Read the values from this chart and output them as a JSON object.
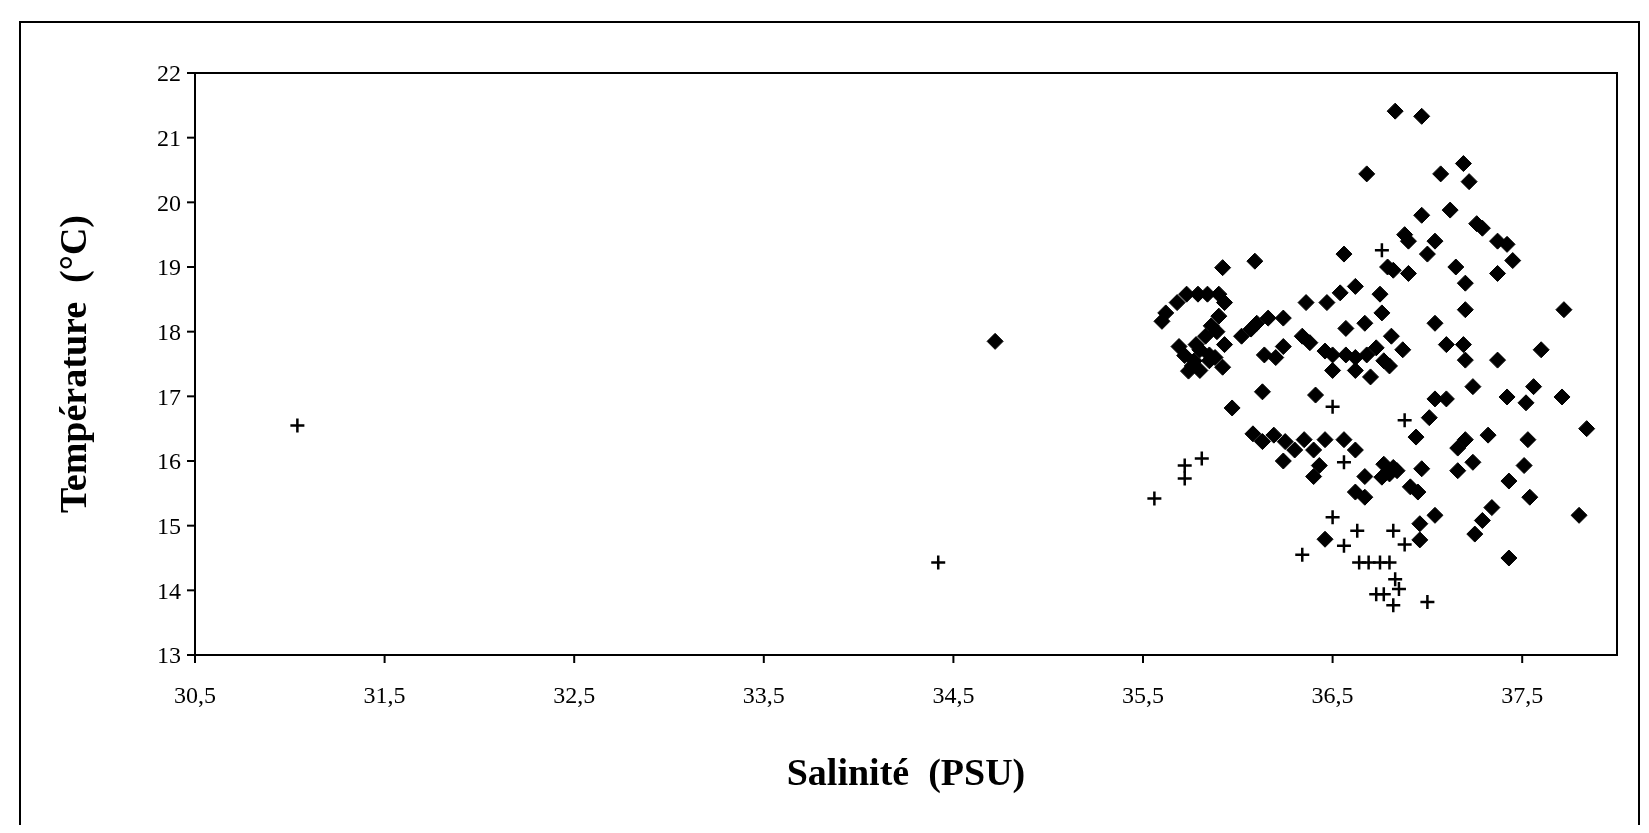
{
  "chart_data": {
    "type": "scatter",
    "xlabel": "Salinité  (PSU)",
    "ylabel": "Température  (°C)",
    "xlim": [
      30.5,
      38
    ],
    "ylim": [
      13,
      22
    ],
    "xticks": [
      {
        "value": 30.5,
        "label": "30,5"
      },
      {
        "value": 31.5,
        "label": "31,5"
      },
      {
        "value": 32.5,
        "label": "32,5"
      },
      {
        "value": 33.5,
        "label": "33,5"
      },
      {
        "value": 34.5,
        "label": "34,5"
      },
      {
        "value": 35.5,
        "label": "35,5"
      },
      {
        "value": 36.5,
        "label": "36,5"
      },
      {
        "value": 37.5,
        "label": "37,5"
      }
    ],
    "yticks": [
      13,
      14,
      15,
      16,
      17,
      18,
      19,
      20,
      21,
      22
    ],
    "series": [
      {
        "color": "#000000",
        "marker": "diamond",
        "x": [
          34.72,
          36.83,
          36.97,
          36.68,
          37.07,
          37.19,
          37.22,
          37.12,
          37.26,
          37.29,
          37.37,
          37.42,
          37.45,
          37.37,
          36.97,
          36.88,
          36.9,
          37.0,
          37.04,
          36.79,
          36.82,
          36.9,
          37.15,
          37.2,
          36.09,
          35.92,
          36.56,
          36.36,
          36.47,
          36.54,
          36.62,
          36.75,
          37.2,
          37.04,
          37.1,
          37.19,
          37.2,
          37.37,
          37.6,
          37.72,
          37.71,
          37.56,
          37.52,
          37.42,
          37.24,
          37.84,
          37.53,
          37.51,
          37.54,
          37.43,
          37.34,
          37.29,
          37.25,
          37.43,
          37.8,
          37.24,
          37.16,
          37.2,
          37.16,
          37.32,
          37.04,
          37.1,
          37.01,
          36.94,
          36.97,
          36.91,
          36.95,
          37.04,
          36.96,
          36.96,
          36.56,
          36.62,
          36.67,
          36.62,
          36.67,
          36.77,
          36.8,
          36.84,
          36.76,
          36.82,
          36.4,
          36.46,
          36.35,
          36.24,
          36.3,
          36.19,
          36.25,
          36.4,
          36.43,
          36.46,
          35.97,
          36.08,
          36.13,
          36.13,
          36.41,
          36.46,
          36.5,
          36.38,
          36.34,
          36.24,
          36.14,
          36.2,
          36.02,
          36.07,
          36.1,
          36.16,
          36.24,
          36.57,
          36.67,
          36.57,
          36.62,
          36.68,
          36.73,
          36.77,
          36.5,
          36.62,
          36.7,
          36.8,
          36.87,
          36.81,
          36.76,
          35.62,
          35.68,
          35.73,
          35.79,
          35.84,
          35.9,
          35.6,
          35.93,
          35.9,
          35.86,
          35.83,
          35.8,
          35.77,
          35.74,
          35.72,
          35.78,
          35.85,
          35.85,
          35.8,
          35.76,
          35.69,
          35.89,
          35.93,
          35.92,
          35.88
        ],
        "values": [
          17.85,
          21.41,
          21.33,
          20.44,
          20.44,
          20.6,
          20.32,
          19.88,
          19.67,
          19.6,
          19.4,
          19.35,
          19.1,
          18.9,
          19.8,
          19.5,
          19.4,
          19.2,
          19.4,
          19.0,
          18.95,
          18.9,
          19.0,
          18.75,
          19.09,
          18.99,
          19.2,
          18.45,
          18.45,
          18.6,
          18.7,
          18.58,
          18.34,
          18.13,
          17.8,
          17.8,
          17.56,
          17.56,
          17.72,
          18.34,
          16.99,
          17.15,
          16.9,
          16.99,
          17.15,
          16.5,
          16.33,
          15.93,
          15.44,
          15.69,
          15.28,
          15.08,
          14.87,
          14.5,
          15.16,
          15.98,
          15.85,
          16.33,
          16.2,
          16.4,
          16.96,
          16.96,
          16.67,
          16.37,
          15.88,
          15.6,
          15.52,
          15.16,
          15.03,
          14.78,
          16.33,
          16.17,
          15.76,
          15.52,
          15.44,
          15.95,
          15.8,
          15.85,
          15.75,
          15.9,
          16.17,
          16.33,
          16.33,
          16.0,
          16.17,
          16.4,
          16.3,
          15.76,
          15.93,
          14.79,
          16.82,
          16.42,
          16.3,
          17.07,
          17.02,
          17.7,
          17.64,
          17.83,
          17.93,
          17.77,
          17.64,
          17.6,
          17.93,
          18.04,
          18.13,
          18.21,
          18.21,
          18.05,
          18.13,
          17.64,
          17.6,
          17.64,
          17.75,
          17.55,
          17.4,
          17.4,
          17.3,
          17.47,
          17.72,
          17.93,
          18.29,
          18.29,
          18.45,
          18.58,
          18.58,
          18.58,
          18.58,
          18.16,
          18.45,
          18.24,
          18.09,
          17.93,
          17.72,
          17.55,
          17.39,
          17.63,
          17.8,
          17.64,
          17.55,
          17.4,
          17.47,
          17.77,
          18.0,
          17.8,
          17.45,
          17.6
        ]
      },
      {
        "color": "#000000",
        "marker": "cross",
        "x": [
          31.04,
          34.42,
          35.56,
          35.72,
          35.72,
          35.81,
          36.5,
          36.5,
          36.34,
          36.56,
          36.63,
          36.56,
          36.64,
          36.69,
          36.75,
          36.8,
          36.82,
          36.88,
          36.73,
          36.77,
          36.83,
          36.85,
          36.82,
          37.0,
          36.88,
          36.76
        ],
        "values": [
          16.55,
          14.43,
          15.42,
          15.73,
          15.93,
          16.04,
          16.84,
          15.13,
          14.55,
          14.69,
          14.92,
          15.98,
          14.43,
          14.43,
          14.43,
          14.43,
          14.92,
          14.71,
          13.94,
          13.94,
          14.17,
          14.02,
          13.77,
          13.82,
          16.63,
          19.26
        ]
      }
    ]
  }
}
